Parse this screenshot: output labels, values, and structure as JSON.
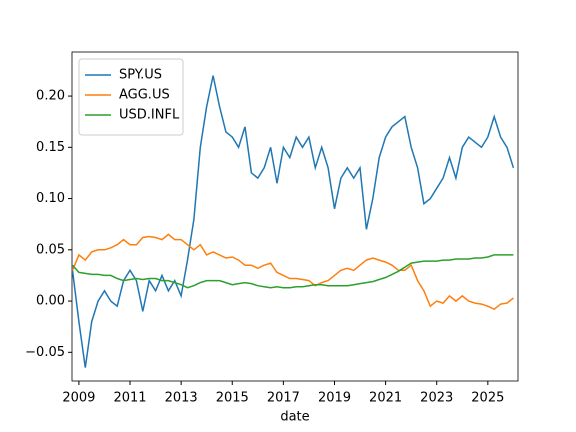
{
  "chart_data": {
    "type": "line",
    "xlabel": "date",
    "x": [
      2008.75,
      2009,
      2009.25,
      2009.5,
      2009.75,
      2010,
      2010.25,
      2010.5,
      2010.75,
      2011,
      2011.25,
      2011.5,
      2011.75,
      2012,
      2012.25,
      2012.5,
      2012.75,
      2013,
      2013.25,
      2013.5,
      2013.75,
      2014,
      2014.25,
      2014.5,
      2014.75,
      2015,
      2015.25,
      2015.5,
      2015.75,
      2016,
      2016.25,
      2016.5,
      2016.75,
      2017,
      2017.25,
      2017.5,
      2017.75,
      2018,
      2018.25,
      2018.5,
      2018.75,
      2019,
      2019.25,
      2019.5,
      2019.75,
      2020,
      2020.25,
      2020.5,
      2020.75,
      2021,
      2021.25,
      2021.5,
      2021.75,
      2022,
      2022.25,
      2022.5,
      2022.75,
      2023,
      2023.25,
      2023.5,
      2023.75,
      2024,
      2024.25,
      2024.5,
      2024.75,
      2025,
      2025.25,
      2025.5,
      2025.75,
      2026
    ],
    "series": [
      {
        "name": "SPY.US",
        "color": "#1f77b4",
        "values": [
          0.03,
          -0.02,
          -0.065,
          -0.02,
          0.0,
          0.01,
          0.0,
          -0.005,
          0.02,
          0.03,
          0.02,
          -0.01,
          0.02,
          0.01,
          0.025,
          0.01,
          0.02,
          0.005,
          0.04,
          0.08,
          0.15,
          0.19,
          0.22,
          0.19,
          0.165,
          0.16,
          0.15,
          0.17,
          0.125,
          0.12,
          0.13,
          0.15,
          0.115,
          0.15,
          0.14,
          0.16,
          0.15,
          0.16,
          0.13,
          0.15,
          0.13,
          0.09,
          0.12,
          0.13,
          0.12,
          0.13,
          0.07,
          0.1,
          0.14,
          0.16,
          0.17,
          0.175,
          0.18,
          0.15,
          0.13,
          0.095,
          0.1,
          0.11,
          0.12,
          0.14,
          0.12,
          0.15,
          0.16,
          0.155,
          0.15,
          0.16,
          0.18,
          0.16,
          0.15,
          0.13
        ]
      },
      {
        "name": "AGG.US",
        "color": "#ff7f0e",
        "values": [
          0.03,
          0.045,
          0.04,
          0.048,
          0.05,
          0.05,
          0.052,
          0.055,
          0.06,
          0.055,
          0.055,
          0.062,
          0.063,
          0.062,
          0.06,
          0.065,
          0.06,
          0.06,
          0.055,
          0.05,
          0.055,
          0.045,
          0.048,
          0.045,
          0.042,
          0.043,
          0.04,
          0.035,
          0.035,
          0.032,
          0.035,
          0.037,
          0.028,
          0.025,
          0.022,
          0.022,
          0.021,
          0.02,
          0.015,
          0.018,
          0.02,
          0.025,
          0.03,
          0.032,
          0.03,
          0.035,
          0.04,
          0.042,
          0.04,
          0.038,
          0.035,
          0.03,
          0.03,
          0.035,
          0.02,
          0.01,
          -0.005,
          0.0,
          -0.002,
          0.005,
          0.0,
          0.005,
          0.0,
          -0.002,
          -0.003,
          -0.005,
          -0.008,
          -0.003,
          -0.002,
          0.003
        ]
      },
      {
        "name": "USD.INFL",
        "color": "#2ca02c",
        "values": [
          0.035,
          0.028,
          0.027,
          0.026,
          0.026,
          0.025,
          0.025,
          0.022,
          0.02,
          0.021,
          0.022,
          0.021,
          0.022,
          0.022,
          0.02,
          0.02,
          0.018,
          0.016,
          0.013,
          0.015,
          0.018,
          0.02,
          0.02,
          0.02,
          0.018,
          0.016,
          0.017,
          0.018,
          0.017,
          0.015,
          0.014,
          0.013,
          0.014,
          0.013,
          0.013,
          0.014,
          0.014,
          0.015,
          0.016,
          0.016,
          0.015,
          0.015,
          0.015,
          0.015,
          0.016,
          0.017,
          0.018,
          0.019,
          0.021,
          0.023,
          0.026,
          0.029,
          0.033,
          0.037,
          0.038,
          0.039,
          0.039,
          0.039,
          0.04,
          0.04,
          0.041,
          0.041,
          0.041,
          0.042,
          0.042,
          0.043,
          0.045,
          0.045,
          0.045,
          0.045
        ]
      }
    ],
    "xlim": [
      2008.73,
      2026.18
    ],
    "xticks": [
      2009,
      2011,
      2013,
      2015,
      2017,
      2019,
      2021,
      2023,
      2025
    ],
    "ylim": [
      -0.078,
      0.243
    ],
    "yticks": [
      {
        "value": -0.05,
        "label": "−0.05"
      },
      {
        "value": 0,
        "label": "0.00"
      },
      {
        "value": 0.05,
        "label": "0.05"
      },
      {
        "value": 0.1,
        "label": "0.10"
      },
      {
        "value": 0.15,
        "label": "0.15"
      },
      {
        "value": 0.2,
        "label": "0.20"
      }
    ],
    "legend": "upper left"
  }
}
